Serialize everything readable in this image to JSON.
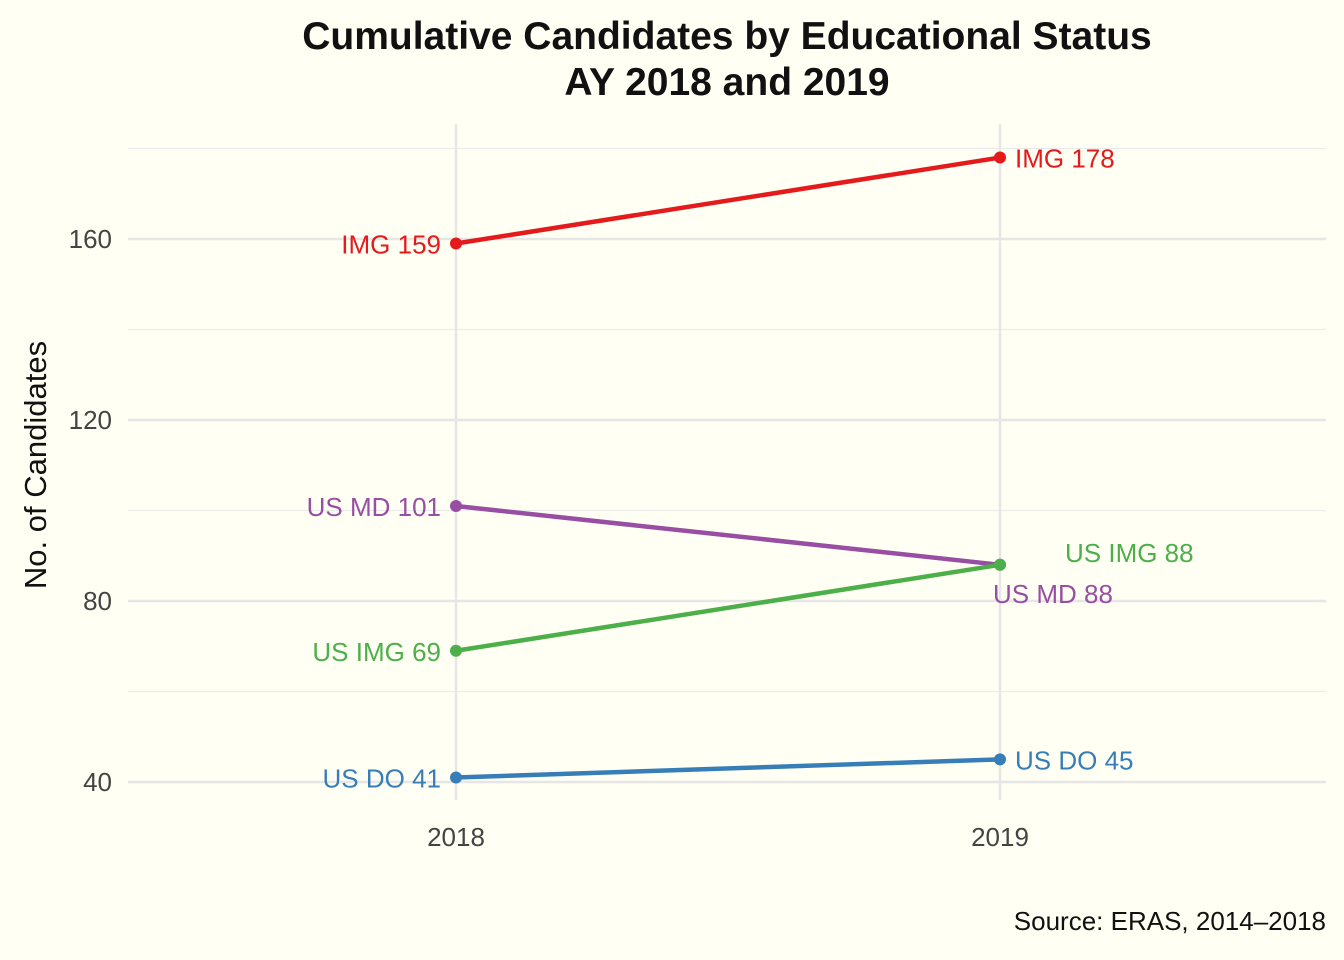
{
  "chart_data": {
    "type": "line",
    "title_lines": [
      "Cumulative Candidates by Educational Status",
      "AY 2018 and 2019"
    ],
    "caption": "Source: ERAS, 2014–2018",
    "ylabel": "No. of Candidates",
    "xlabel": "",
    "x": [
      "2018",
      "2019"
    ],
    "yticks": [
      40,
      80,
      120,
      160
    ],
    "ylim": [
      40,
      180
    ],
    "grid": true,
    "legend": "none",
    "series": [
      {
        "name": "IMG",
        "values": [
          159,
          178
        ],
        "color": "#e41a1c",
        "labels": [
          "IMG 159",
          "IMG 178"
        ]
      },
      {
        "name": "US MD",
        "values": [
          101,
          88
        ],
        "color": "#984ea3",
        "labels": [
          "US MD 101",
          "US MD 88"
        ]
      },
      {
        "name": "US IMG",
        "values": [
          69,
          88
        ],
        "color": "#4daf4a",
        "labels": [
          "US IMG 69",
          "US IMG 88"
        ]
      },
      {
        "name": "US DO",
        "values": [
          41,
          45
        ],
        "color": "#377eb8",
        "labels": [
          "US DO 41",
          "US DO 45"
        ]
      }
    ]
  }
}
